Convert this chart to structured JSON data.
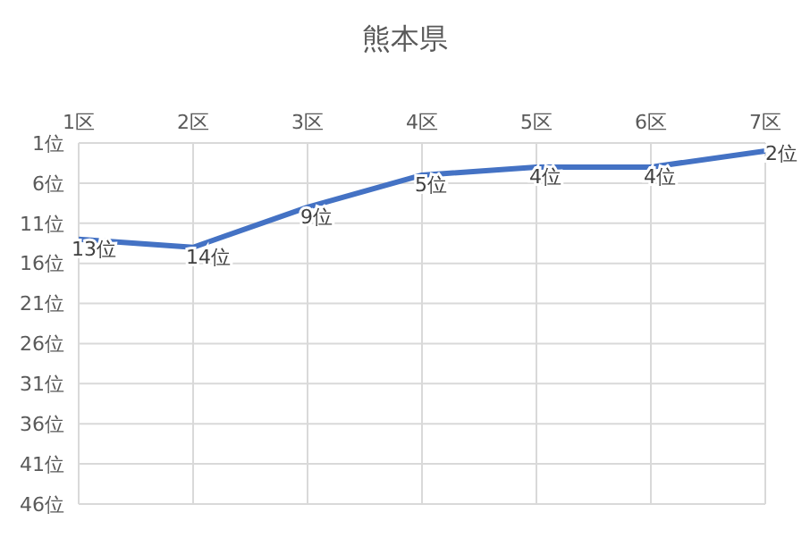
{
  "chart_data": {
    "type": "line",
    "title": "熊本県",
    "categories": [
      "1区",
      "2区",
      "3区",
      "4区",
      "5区",
      "6区",
      "7区"
    ],
    "series": [
      {
        "color": "#4472c4",
        "values": [
          13,
          14,
          9,
          5,
          4,
          4,
          2
        ],
        "value_labels": [
          "13位",
          "14位",
          "9位",
          "5位",
          "4位",
          "4位",
          "2位"
        ]
      }
    ],
    "ylim": [
      46,
      1
    ],
    "yticks": [
      {
        "value": 1,
        "label": "1位"
      },
      {
        "value": 6,
        "label": "6位"
      },
      {
        "value": 11,
        "label": "11位"
      },
      {
        "value": 16,
        "label": "16位"
      },
      {
        "value": 21,
        "label": "21位"
      },
      {
        "value": 26,
        "label": "26位"
      },
      {
        "value": 31,
        "label": "31位"
      },
      {
        "value": 36,
        "label": "36位"
      },
      {
        "value": 41,
        "label": "41位"
      },
      {
        "value": 46,
        "label": "46位"
      }
    ],
    "grid": true,
    "marker": "none",
    "line_style": "solid",
    "legend": false
  }
}
